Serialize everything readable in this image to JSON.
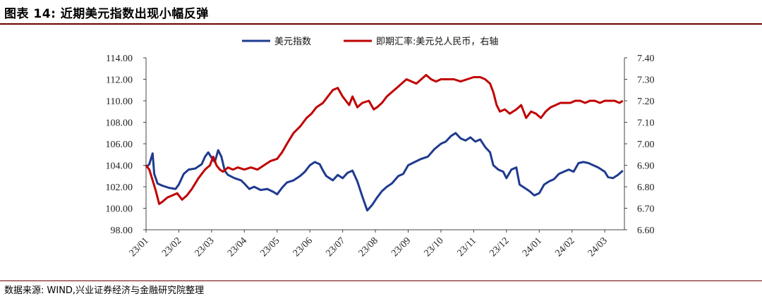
{
  "figure": {
    "title": "图表 14:  近期美元指数出现小幅反弹",
    "source": "数据来源: WIND,兴业证券经济与金融研究院整理"
  },
  "chart_data": {
    "type": "line",
    "title": "",
    "xlabel": "",
    "ylabel": "",
    "x_ticks": [
      "23/01",
      "23/02",
      "23/03",
      "23/04",
      "23/05",
      "23/06",
      "23/07",
      "23/08",
      "23/09",
      "23/10",
      "23/11",
      "23/12",
      "24/01",
      "24/02",
      "24/03"
    ],
    "x_range": [
      0,
      14.6
    ],
    "left_axis": {
      "ylim": [
        98,
        114
      ],
      "ticks": [
        "98.00",
        "100.00",
        "102.00",
        "104.00",
        "106.00",
        "108.00",
        "110.00",
        "112.00",
        "114.00"
      ]
    },
    "right_axis": {
      "ylim": [
        6.6,
        7.4
      ],
      "ticks": [
        "6.60",
        "6.70",
        "6.80",
        "6.90",
        "7.00",
        "7.10",
        "7.20",
        "7.30",
        "7.40"
      ]
    },
    "legend_position": "top-center",
    "series": [
      {
        "name": "美元指数",
        "axis": "left",
        "color": "#1f3a8f",
        "points": [
          [
            0,
            103.8
          ],
          [
            0.1,
            104.1
          ],
          [
            0.2,
            105.1
          ],
          [
            0.25,
            103.2
          ],
          [
            0.35,
            102.3
          ],
          [
            0.5,
            102.1
          ],
          [
            0.7,
            101.9
          ],
          [
            0.9,
            101.8
          ],
          [
            1.0,
            102.2
          ],
          [
            1.15,
            103.2
          ],
          [
            1.3,
            103.6
          ],
          [
            1.5,
            103.7
          ],
          [
            1.7,
            104.1
          ],
          [
            1.8,
            104.8
          ],
          [
            1.9,
            105.2
          ],
          [
            2.0,
            104.7
          ],
          [
            2.1,
            104.3
          ],
          [
            2.2,
            105.4
          ],
          [
            2.3,
            104.8
          ],
          [
            2.4,
            103.5
          ],
          [
            2.5,
            103.1
          ],
          [
            2.7,
            102.8
          ],
          [
            2.9,
            102.6
          ],
          [
            3.0,
            102.3
          ],
          [
            3.15,
            101.8
          ],
          [
            3.3,
            102.0
          ],
          [
            3.5,
            101.7
          ],
          [
            3.7,
            101.8
          ],
          [
            3.9,
            101.5
          ],
          [
            4.0,
            101.3
          ],
          [
            4.15,
            101.9
          ],
          [
            4.3,
            102.4
          ],
          [
            4.5,
            102.6
          ],
          [
            4.7,
            103.0
          ],
          [
            4.85,
            103.4
          ],
          [
            5.0,
            104.0
          ],
          [
            5.15,
            104.3
          ],
          [
            5.3,
            104.1
          ],
          [
            5.4,
            103.5
          ],
          [
            5.5,
            103.0
          ],
          [
            5.7,
            102.6
          ],
          [
            5.85,
            103.1
          ],
          [
            6.0,
            102.8
          ],
          [
            6.15,
            103.3
          ],
          [
            6.3,
            103.5
          ],
          [
            6.45,
            102.5
          ],
          [
            6.6,
            101.1
          ],
          [
            6.75,
            99.8
          ],
          [
            6.9,
            100.3
          ],
          [
            7.05,
            101.0
          ],
          [
            7.2,
            101.6
          ],
          [
            7.35,
            102.0
          ],
          [
            7.5,
            102.3
          ],
          [
            7.7,
            103.0
          ],
          [
            7.85,
            103.2
          ],
          [
            8.0,
            104.0
          ],
          [
            8.2,
            104.3
          ],
          [
            8.4,
            104.6
          ],
          [
            8.6,
            104.8
          ],
          [
            8.8,
            105.5
          ],
          [
            9.0,
            106.0
          ],
          [
            9.15,
            106.2
          ],
          [
            9.3,
            106.7
          ],
          [
            9.45,
            107.0
          ],
          [
            9.6,
            106.5
          ],
          [
            9.75,
            106.3
          ],
          [
            9.9,
            106.6
          ],
          [
            10.05,
            106.2
          ],
          [
            10.2,
            106.4
          ],
          [
            10.35,
            105.7
          ],
          [
            10.5,
            105.2
          ],
          [
            10.6,
            104.0
          ],
          [
            10.75,
            103.6
          ],
          [
            10.9,
            103.4
          ],
          [
            11.0,
            102.8
          ],
          [
            11.15,
            103.6
          ],
          [
            11.3,
            103.8
          ],
          [
            11.4,
            102.2
          ],
          [
            11.55,
            101.9
          ],
          [
            11.7,
            101.6
          ],
          [
            11.85,
            101.2
          ],
          [
            12.0,
            101.4
          ],
          [
            12.15,
            102.2
          ],
          [
            12.3,
            102.5
          ],
          [
            12.45,
            102.7
          ],
          [
            12.6,
            103.2
          ],
          [
            12.75,
            103.4
          ],
          [
            12.9,
            103.6
          ],
          [
            13.05,
            103.4
          ],
          [
            13.2,
            104.2
          ],
          [
            13.35,
            104.3
          ],
          [
            13.5,
            104.2
          ],
          [
            13.65,
            104.0
          ],
          [
            13.8,
            103.8
          ],
          [
            13.9,
            103.6
          ],
          [
            14.0,
            103.4
          ],
          [
            14.1,
            102.9
          ],
          [
            14.25,
            102.8
          ],
          [
            14.4,
            103.1
          ],
          [
            14.55,
            103.5
          ]
        ]
      },
      {
        "name": "即期汇率:美元兑人民币，右轴",
        "axis": "right",
        "color": "#c00000",
        "points": [
          [
            0,
            6.9
          ],
          [
            0.1,
            6.88
          ],
          [
            0.2,
            6.83
          ],
          [
            0.3,
            6.78
          ],
          [
            0.4,
            6.72
          ],
          [
            0.5,
            6.73
          ],
          [
            0.65,
            6.75
          ],
          [
            0.8,
            6.76
          ],
          [
            0.95,
            6.77
          ],
          [
            1.1,
            6.74
          ],
          [
            1.25,
            6.76
          ],
          [
            1.4,
            6.79
          ],
          [
            1.6,
            6.84
          ],
          [
            1.8,
            6.88
          ],
          [
            1.95,
            6.9
          ],
          [
            2.05,
            6.94
          ],
          [
            2.15,
            6.9
          ],
          [
            2.25,
            6.88
          ],
          [
            2.35,
            6.87
          ],
          [
            2.5,
            6.89
          ],
          [
            2.65,
            6.88
          ],
          [
            2.8,
            6.89
          ],
          [
            3.0,
            6.88
          ],
          [
            3.2,
            6.89
          ],
          [
            3.4,
            6.88
          ],
          [
            3.6,
            6.9
          ],
          [
            3.8,
            6.92
          ],
          [
            4.0,
            6.93
          ],
          [
            4.15,
            6.96
          ],
          [
            4.3,
            7.0
          ],
          [
            4.5,
            7.05
          ],
          [
            4.7,
            7.08
          ],
          [
            4.9,
            7.12
          ],
          [
            5.05,
            7.14
          ],
          [
            5.2,
            7.17
          ],
          [
            5.4,
            7.19
          ],
          [
            5.55,
            7.22
          ],
          [
            5.7,
            7.25
          ],
          [
            5.85,
            7.26
          ],
          [
            6.0,
            7.22
          ],
          [
            6.1,
            7.2
          ],
          [
            6.2,
            7.18
          ],
          [
            6.3,
            7.22
          ],
          [
            6.45,
            7.17
          ],
          [
            6.6,
            7.19
          ],
          [
            6.8,
            7.2
          ],
          [
            6.95,
            7.16
          ],
          [
            7.05,
            7.17
          ],
          [
            7.2,
            7.19
          ],
          [
            7.35,
            7.22
          ],
          [
            7.5,
            7.24
          ],
          [
            7.65,
            7.26
          ],
          [
            7.8,
            7.28
          ],
          [
            7.95,
            7.3
          ],
          [
            8.1,
            7.29
          ],
          [
            8.25,
            7.28
          ],
          [
            8.4,
            7.3
          ],
          [
            8.55,
            7.32
          ],
          [
            8.7,
            7.3
          ],
          [
            8.85,
            7.29
          ],
          [
            9.0,
            7.3
          ],
          [
            9.2,
            7.3
          ],
          [
            9.4,
            7.3
          ],
          [
            9.6,
            7.29
          ],
          [
            9.8,
            7.3
          ],
          [
            10.0,
            7.31
          ],
          [
            10.2,
            7.31
          ],
          [
            10.35,
            7.3
          ],
          [
            10.5,
            7.28
          ],
          [
            10.6,
            7.24
          ],
          [
            10.7,
            7.18
          ],
          [
            10.8,
            7.15
          ],
          [
            10.95,
            7.16
          ],
          [
            11.1,
            7.14
          ],
          [
            11.3,
            7.16
          ],
          [
            11.45,
            7.18
          ],
          [
            11.6,
            7.12
          ],
          [
            11.75,
            7.15
          ],
          [
            11.9,
            7.14
          ],
          [
            12.05,
            7.12
          ],
          [
            12.2,
            7.15
          ],
          [
            12.35,
            7.17
          ],
          [
            12.5,
            7.18
          ],
          [
            12.65,
            7.19
          ],
          [
            12.8,
            7.19
          ],
          [
            12.95,
            7.19
          ],
          [
            13.1,
            7.2
          ],
          [
            13.25,
            7.2
          ],
          [
            13.4,
            7.19
          ],
          [
            13.55,
            7.2
          ],
          [
            13.7,
            7.2
          ],
          [
            13.85,
            7.19
          ],
          [
            14.0,
            7.2
          ],
          [
            14.15,
            7.2
          ],
          [
            14.3,
            7.2
          ],
          [
            14.45,
            7.19
          ],
          [
            14.55,
            7.2
          ]
        ]
      }
    ]
  }
}
